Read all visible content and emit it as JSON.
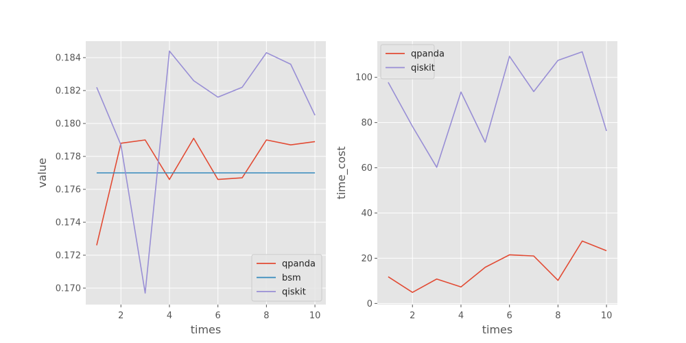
{
  "chart_data": [
    {
      "type": "line",
      "xlabel": "times",
      "ylabel": "value",
      "xlim": [
        0.55,
        10.45
      ],
      "ylim": [
        0.169,
        0.185
      ],
      "x_ticks": [
        2,
        4,
        6,
        8,
        10
      ],
      "y_ticks": [
        0.17,
        0.172,
        0.174,
        0.176,
        0.178,
        0.18,
        0.182,
        0.184
      ],
      "y_tick_labels": [
        "0.170",
        "0.172",
        "0.174",
        "0.176",
        "0.178",
        "0.180",
        "0.182",
        "0.184"
      ],
      "grid": true,
      "legend_position": "lower-right",
      "x": [
        1,
        2,
        3,
        4,
        5,
        6,
        7,
        8,
        9,
        10
      ],
      "series": [
        {
          "name": "qpanda",
          "color": "#e24a33",
          "values": [
            0.1726,
            0.1788,
            0.179,
            0.1766,
            0.1791,
            0.1766,
            0.1767,
            0.179,
            0.1787,
            0.1789
          ]
        },
        {
          "name": "bsm",
          "color": "#348abd",
          "values": [
            0.177,
            0.177,
            0.177,
            0.177,
            0.177,
            0.177,
            0.177,
            0.177,
            0.177,
            0.177
          ]
        },
        {
          "name": "qiskit",
          "color": "#988ed5",
          "values": [
            0.1822,
            0.1787,
            0.1697,
            0.1844,
            0.1826,
            0.1816,
            0.1822,
            0.1843,
            0.1836,
            0.1805
          ]
        }
      ]
    },
    {
      "type": "line",
      "xlabel": "times",
      "ylabel": "time_cost",
      "xlim": [
        0.55,
        10.45
      ],
      "ylim": [
        -0.5,
        116
      ],
      "x_ticks": [
        2,
        4,
        6,
        8,
        10
      ],
      "y_ticks": [
        0,
        20,
        40,
        60,
        80,
        100
      ],
      "y_tick_labels": [
        "0",
        "20",
        "40",
        "60",
        "80",
        "100"
      ],
      "grid": true,
      "legend_position": "upper-left",
      "x": [
        1,
        2,
        3,
        4,
        5,
        6,
        7,
        8,
        9,
        10
      ],
      "series": [
        {
          "name": "qpanda",
          "color": "#e24a33",
          "values": [
            11.8,
            4.9,
            10.8,
            7.3,
            16.0,
            21.5,
            21.0,
            10.2,
            27.6,
            23.3
          ]
        },
        {
          "name": "qiskit",
          "color": "#988ed5",
          "values": [
            97.8,
            78.3,
            60.2,
            93.5,
            71.3,
            109.3,
            93.7,
            107.5,
            111.3,
            76.3
          ]
        }
      ]
    }
  ]
}
